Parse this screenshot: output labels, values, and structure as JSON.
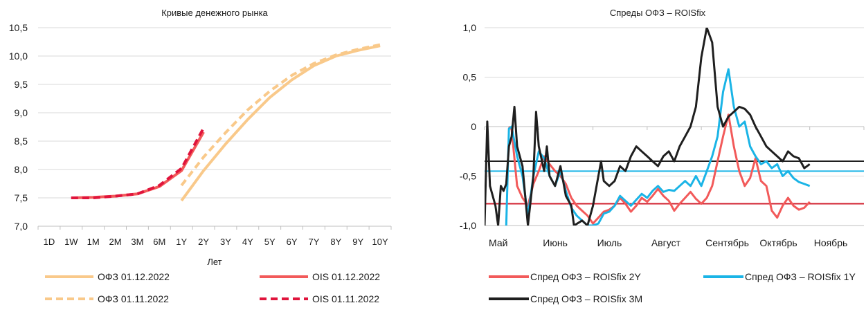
{
  "chart_data": [
    {
      "type": "line",
      "title": "Кривые денежного рынка",
      "xlabel": "Лет",
      "ylabel": "",
      "categories": [
        "1D",
        "1W",
        "1M",
        "2M",
        "3M",
        "6M",
        "1Y",
        "2Y",
        "3Y",
        "4Y",
        "5Y",
        "6Y",
        "7Y",
        "8Y",
        "9Y",
        "10Y"
      ],
      "ylim": [
        7.0,
        10.5
      ],
      "yticks": [
        "7,0",
        "7,5",
        "8,0",
        "8,5",
        "9,0",
        "9,5",
        "10,0",
        "10,5"
      ],
      "grid": true,
      "legend_position": "bottom",
      "series": [
        {
          "name": "ОФЗ 01.12.2022",
          "color": "#f9c98a",
          "dash": false,
          "points": [
            [
              6,
              7.45
            ],
            [
              7,
              7.98
            ],
            [
              8,
              8.45
            ],
            [
              9,
              8.88
            ],
            [
              10,
              9.27
            ],
            [
              11,
              9.58
            ],
            [
              12,
              9.83
            ],
            [
              13,
              10.0
            ],
            [
              14,
              10.1
            ],
            [
              15,
              10.18
            ]
          ]
        },
        {
          "name": "ОФЗ 01.11.2022",
          "color": "#f9c98a",
          "dash": true,
          "points": [
            [
              6,
              7.72
            ],
            [
              7,
              8.22
            ],
            [
              8,
              8.65
            ],
            [
              9,
              9.05
            ],
            [
              10,
              9.38
            ],
            [
              11,
              9.66
            ],
            [
              12,
              9.87
            ],
            [
              13,
              10.02
            ],
            [
              14,
              10.12
            ],
            [
              15,
              10.2
            ]
          ]
        },
        {
          "name": "OIS 01.12.2022",
          "color": "#f25a5a",
          "dash": false,
          "points": [
            [
              1,
              7.5
            ],
            [
              2,
              7.51
            ],
            [
              3,
              7.53
            ],
            [
              4,
              7.57
            ],
            [
              5,
              7.7
            ],
            [
              6,
              7.98
            ],
            [
              7,
              8.66
            ]
          ]
        },
        {
          "name": "OIS 01.11.2022",
          "color": "#e0143c",
          "dash": true,
          "points": [
            [
              1,
              7.5
            ],
            [
              2,
              7.5
            ],
            [
              3,
              7.53
            ],
            [
              4,
              7.57
            ],
            [
              5,
              7.72
            ],
            [
              6,
              8.02
            ],
            [
              7,
              8.73
            ]
          ]
        }
      ]
    },
    {
      "type": "line",
      "title": "Спреды ОФЗ – ROISfix",
      "xlabel": "",
      "ylabel": "",
      "categories": [
        "Май",
        "Июнь",
        "Июль",
        "Август",
        "Сентябрь",
        "Октябрь",
        "Ноябрь"
      ],
      "ylim": [
        -1.0,
        1.0
      ],
      "yticks": [
        "-1,0",
        "-0,5",
        "0",
        "0,5",
        "1,0"
      ],
      "grid": true,
      "legend_position": "bottom",
      "horizontal_lines": [
        {
          "value": -0.35,
          "color": "#1f1f1f"
        },
        {
          "value": -0.45,
          "color": "#1ab4e6"
        },
        {
          "value": -0.78,
          "color": "#d11f2e"
        }
      ],
      "series": [
        {
          "name": "Спред ОФЗ – ROISfix 2Y",
          "color": "#f25a5a",
          "points": [
            [
              0.45,
              0.0
            ],
            [
              0.5,
              -0.03
            ],
            [
              0.6,
              -0.6
            ],
            [
              0.7,
              -0.72
            ],
            [
              0.8,
              -0.8
            ],
            [
              0.9,
              -0.58
            ],
            [
              1.0,
              -0.45
            ],
            [
              1.1,
              -0.3
            ],
            [
              1.2,
              -0.38
            ],
            [
              1.3,
              -0.45
            ],
            [
              1.4,
              -0.5
            ],
            [
              1.5,
              -0.58
            ],
            [
              1.6,
              -0.72
            ],
            [
              1.7,
              -0.8
            ],
            [
              1.8,
              -0.85
            ],
            [
              1.9,
              -0.9
            ],
            [
              2.0,
              -0.98
            ],
            [
              2.1,
              -0.92
            ],
            [
              2.2,
              -0.86
            ],
            [
              2.3,
              -0.84
            ],
            [
              2.4,
              -0.8
            ],
            [
              2.5,
              -0.72
            ],
            [
              2.6,
              -0.78
            ],
            [
              2.7,
              -0.86
            ],
            [
              2.8,
              -0.8
            ],
            [
              2.9,
              -0.72
            ],
            [
              3.0,
              -0.76
            ],
            [
              3.1,
              -0.7
            ],
            [
              3.2,
              -0.63
            ],
            [
              3.3,
              -0.7
            ],
            [
              3.4,
              -0.75
            ],
            [
              3.5,
              -0.85
            ],
            [
              3.6,
              -0.78
            ],
            [
              3.7,
              -0.72
            ],
            [
              3.8,
              -0.66
            ],
            [
              3.9,
              -0.73
            ],
            [
              4.0,
              -0.78
            ],
            [
              4.1,
              -0.72
            ],
            [
              4.2,
              -0.6
            ],
            [
              4.3,
              -0.35
            ],
            [
              4.4,
              -0.1
            ],
            [
              4.5,
              0.12
            ],
            [
              4.6,
              -0.2
            ],
            [
              4.7,
              -0.45
            ],
            [
              4.8,
              -0.6
            ],
            [
              4.9,
              -0.52
            ],
            [
              5.0,
              -0.32
            ],
            [
              5.1,
              -0.55
            ],
            [
              5.2,
              -0.6
            ],
            [
              5.3,
              -0.85
            ],
            [
              5.4,
              -0.92
            ],
            [
              5.5,
              -0.8
            ],
            [
              5.6,
              -0.72
            ],
            [
              5.7,
              -0.8
            ],
            [
              5.8,
              -0.84
            ],
            [
              5.9,
              -0.82
            ],
            [
              6.0,
              -0.76
            ]
          ]
        },
        {
          "name": "Спред ОФЗ – ROISfix 1Y",
          "color": "#1ab4e6",
          "points": [
            [
              0.4,
              -1.0
            ],
            [
              0.45,
              -0.02
            ],
            [
              0.5,
              0.0
            ],
            [
              0.6,
              -0.3
            ],
            [
              0.7,
              -0.5
            ],
            [
              0.8,
              -0.9
            ],
            [
              0.9,
              -0.5
            ],
            [
              1.0,
              -0.25
            ],
            [
              1.1,
              -0.32
            ],
            [
              1.2,
              -0.5
            ],
            [
              1.3,
              -0.6
            ],
            [
              1.4,
              -0.45
            ],
            [
              1.5,
              -0.65
            ],
            [
              1.6,
              -0.82
            ],
            [
              1.7,
              -0.9
            ],
            [
              1.8,
              -0.95
            ],
            [
              1.9,
              -1.0
            ],
            [
              2.0,
              -1.0
            ],
            [
              2.1,
              -0.98
            ],
            [
              2.2,
              -0.88
            ],
            [
              2.3,
              -0.86
            ],
            [
              2.4,
              -0.8
            ],
            [
              2.5,
              -0.7
            ],
            [
              2.6,
              -0.75
            ],
            [
              2.7,
              -0.8
            ],
            [
              2.8,
              -0.74
            ],
            [
              2.9,
              -0.68
            ],
            [
              3.0,
              -0.72
            ],
            [
              3.1,
              -0.65
            ],
            [
              3.2,
              -0.6
            ],
            [
              3.3,
              -0.66
            ],
            [
              3.4,
              -0.64
            ],
            [
              3.5,
              -0.65
            ],
            [
              3.6,
              -0.6
            ],
            [
              3.7,
              -0.55
            ],
            [
              3.8,
              -0.6
            ],
            [
              3.9,
              -0.5
            ],
            [
              4.0,
              -0.6
            ],
            [
              4.1,
              -0.45
            ],
            [
              4.2,
              -0.3
            ],
            [
              4.3,
              -0.1
            ],
            [
              4.4,
              0.35
            ],
            [
              4.5,
              0.58
            ],
            [
              4.6,
              0.2
            ],
            [
              4.7,
              0.0
            ],
            [
              4.8,
              0.05
            ],
            [
              4.9,
              -0.2
            ],
            [
              5.0,
              -0.3
            ],
            [
              5.1,
              -0.38
            ],
            [
              5.2,
              -0.35
            ],
            [
              5.3,
              -0.42
            ],
            [
              5.4,
              -0.38
            ],
            [
              5.5,
              -0.5
            ],
            [
              5.6,
              -0.45
            ],
            [
              5.7,
              -0.52
            ],
            [
              5.8,
              -0.56
            ],
            [
              5.9,
              -0.58
            ],
            [
              6.0,
              -0.6
            ]
          ]
        },
        {
          "name": "Спред ОФЗ – ROISfix 3M",
          "color": "#1f1f1f",
          "points": [
            [
              0.0,
              -1.0
            ],
            [
              0.05,
              0.05
            ],
            [
              0.1,
              -0.6
            ],
            [
              0.2,
              -0.8
            ],
            [
              0.25,
              -1.0
            ],
            [
              0.3,
              -0.6
            ],
            [
              0.35,
              -0.65
            ],
            [
              0.4,
              -0.58
            ],
            [
              0.45,
              -0.2
            ],
            [
              0.5,
              -0.1
            ],
            [
              0.55,
              0.2
            ],
            [
              0.6,
              -0.2
            ],
            [
              0.7,
              -0.4
            ],
            [
              0.8,
              -1.0
            ],
            [
              0.9,
              -0.5
            ],
            [
              0.95,
              0.15
            ],
            [
              1.0,
              -0.2
            ],
            [
              1.1,
              -0.45
            ],
            [
              1.15,
              -0.2
            ],
            [
              1.2,
              -0.5
            ],
            [
              1.3,
              -0.6
            ],
            [
              1.4,
              -0.4
            ],
            [
              1.5,
              -0.7
            ],
            [
              1.6,
              -0.8
            ],
            [
              1.65,
              -1.0
            ],
            [
              1.8,
              -0.95
            ],
            [
              1.9,
              -1.0
            ],
            [
              2.0,
              -0.8
            ],
            [
              2.1,
              -0.5
            ],
            [
              2.15,
              -0.35
            ],
            [
              2.2,
              -0.55
            ],
            [
              2.3,
              -0.6
            ],
            [
              2.4,
              -0.55
            ],
            [
              2.5,
              -0.4
            ],
            [
              2.6,
              -0.45
            ],
            [
              2.7,
              -0.3
            ],
            [
              2.8,
              -0.2
            ],
            [
              2.9,
              -0.25
            ],
            [
              3.0,
              -0.3
            ],
            [
              3.1,
              -0.35
            ],
            [
              3.2,
              -0.4
            ],
            [
              3.3,
              -0.3
            ],
            [
              3.4,
              -0.25
            ],
            [
              3.5,
              -0.35
            ],
            [
              3.6,
              -0.2
            ],
            [
              3.7,
              -0.1
            ],
            [
              3.8,
              0.0
            ],
            [
              3.9,
              0.2
            ],
            [
              4.0,
              0.7
            ],
            [
              4.1,
              1.0
            ],
            [
              4.2,
              0.85
            ],
            [
              4.3,
              0.2
            ],
            [
              4.4,
              0.0
            ],
            [
              4.5,
              0.1
            ],
            [
              4.6,
              0.15
            ],
            [
              4.7,
              0.2
            ],
            [
              4.8,
              0.18
            ],
            [
              4.9,
              0.12
            ],
            [
              5.0,
              0.0
            ],
            [
              5.1,
              -0.1
            ],
            [
              5.2,
              -0.2
            ],
            [
              5.3,
              -0.25
            ],
            [
              5.4,
              -0.3
            ],
            [
              5.5,
              -0.35
            ],
            [
              5.6,
              -0.25
            ],
            [
              5.7,
              -0.3
            ],
            [
              5.8,
              -0.32
            ],
            [
              5.9,
              -0.42
            ],
            [
              6.0,
              -0.38
            ]
          ]
        }
      ]
    }
  ]
}
